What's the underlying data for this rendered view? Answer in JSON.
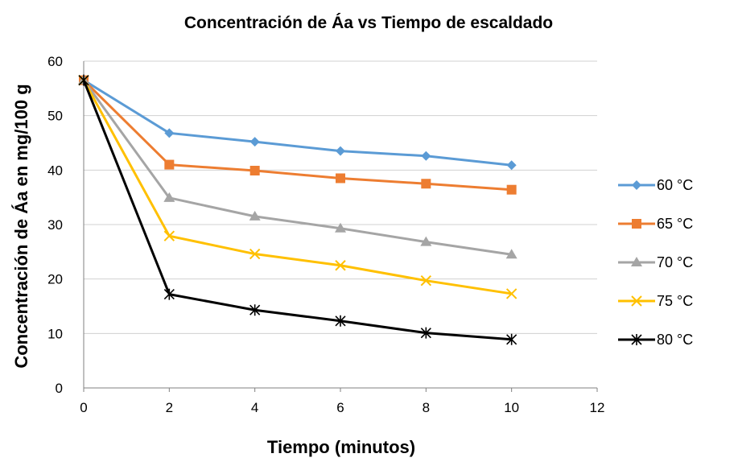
{
  "chart_data": {
    "type": "line",
    "title": "Concentración de Áa vs Tiempo de escaldado",
    "xlabel": "Tiempo (minutos)",
    "ylabel": "Concentración de Áa en mg/100 g",
    "xlim": [
      0,
      12
    ],
    "ylim": [
      0,
      60
    ],
    "x_ticks": [
      0,
      2,
      4,
      6,
      8,
      10,
      12
    ],
    "y_ticks": [
      0,
      10,
      20,
      30,
      40,
      50,
      60
    ],
    "grid": "horizontal",
    "legend_position": "right",
    "x": [
      0,
      2,
      4,
      6,
      8,
      10
    ],
    "series": [
      {
        "name": "60 °C",
        "color": "#5B9BD5",
        "marker": "diamond",
        "values": [
          56.5,
          46.8,
          45.2,
          43.5,
          42.6,
          40.9
        ]
      },
      {
        "name": "65 °C",
        "color": "#ED7D31",
        "marker": "square",
        "values": [
          56.5,
          41.0,
          39.9,
          38.5,
          37.5,
          36.4
        ]
      },
      {
        "name": "70 °C",
        "color": "#A5A5A5",
        "marker": "triangle",
        "values": [
          56.5,
          34.9,
          31.5,
          29.3,
          26.8,
          24.5
        ]
      },
      {
        "name": "75 °C",
        "color": "#FFC000",
        "marker": "x",
        "values": [
          56.5,
          27.9,
          24.6,
          22.5,
          19.7,
          17.3
        ]
      },
      {
        "name": "80 °C",
        "color": "#000000",
        "marker": "asterisk",
        "values": [
          56.5,
          17.2,
          14.3,
          12.3,
          10.1,
          8.9
        ]
      }
    ]
  }
}
